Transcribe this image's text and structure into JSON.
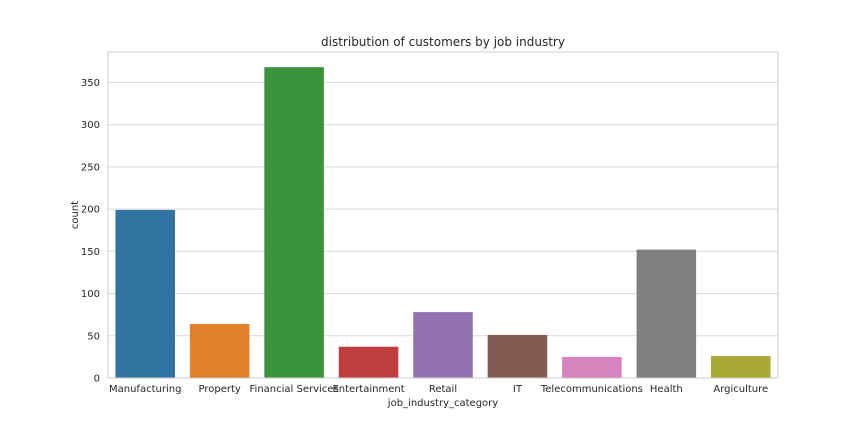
{
  "chart_data": {
    "type": "bar",
    "title": "distribution of customers by job industry",
    "xlabel": "job_industry_category",
    "ylabel": "count",
    "categories": [
      "Manufacturing",
      "Property",
      "Financial Services",
      "Entertainment",
      "Retail",
      "IT",
      "Telecommunications",
      "Health",
      "Argiculture"
    ],
    "values": [
      199,
      64,
      368,
      37,
      78,
      51,
      25,
      152,
      26
    ],
    "colors": [
      "#3274a1",
      "#e1812c",
      "#3a923a",
      "#c03d3e",
      "#9372b2",
      "#845b53",
      "#d684bd",
      "#7f7f7f",
      "#a9aa35"
    ],
    "yticks": [
      0,
      50,
      100,
      150,
      200,
      250,
      300,
      350
    ],
    "ylim": [
      0,
      386
    ],
    "grid": true,
    "style": {
      "background": "#ffffff",
      "grid_color": "#d9d9d9",
      "spine_color": "#cccccc"
    }
  }
}
